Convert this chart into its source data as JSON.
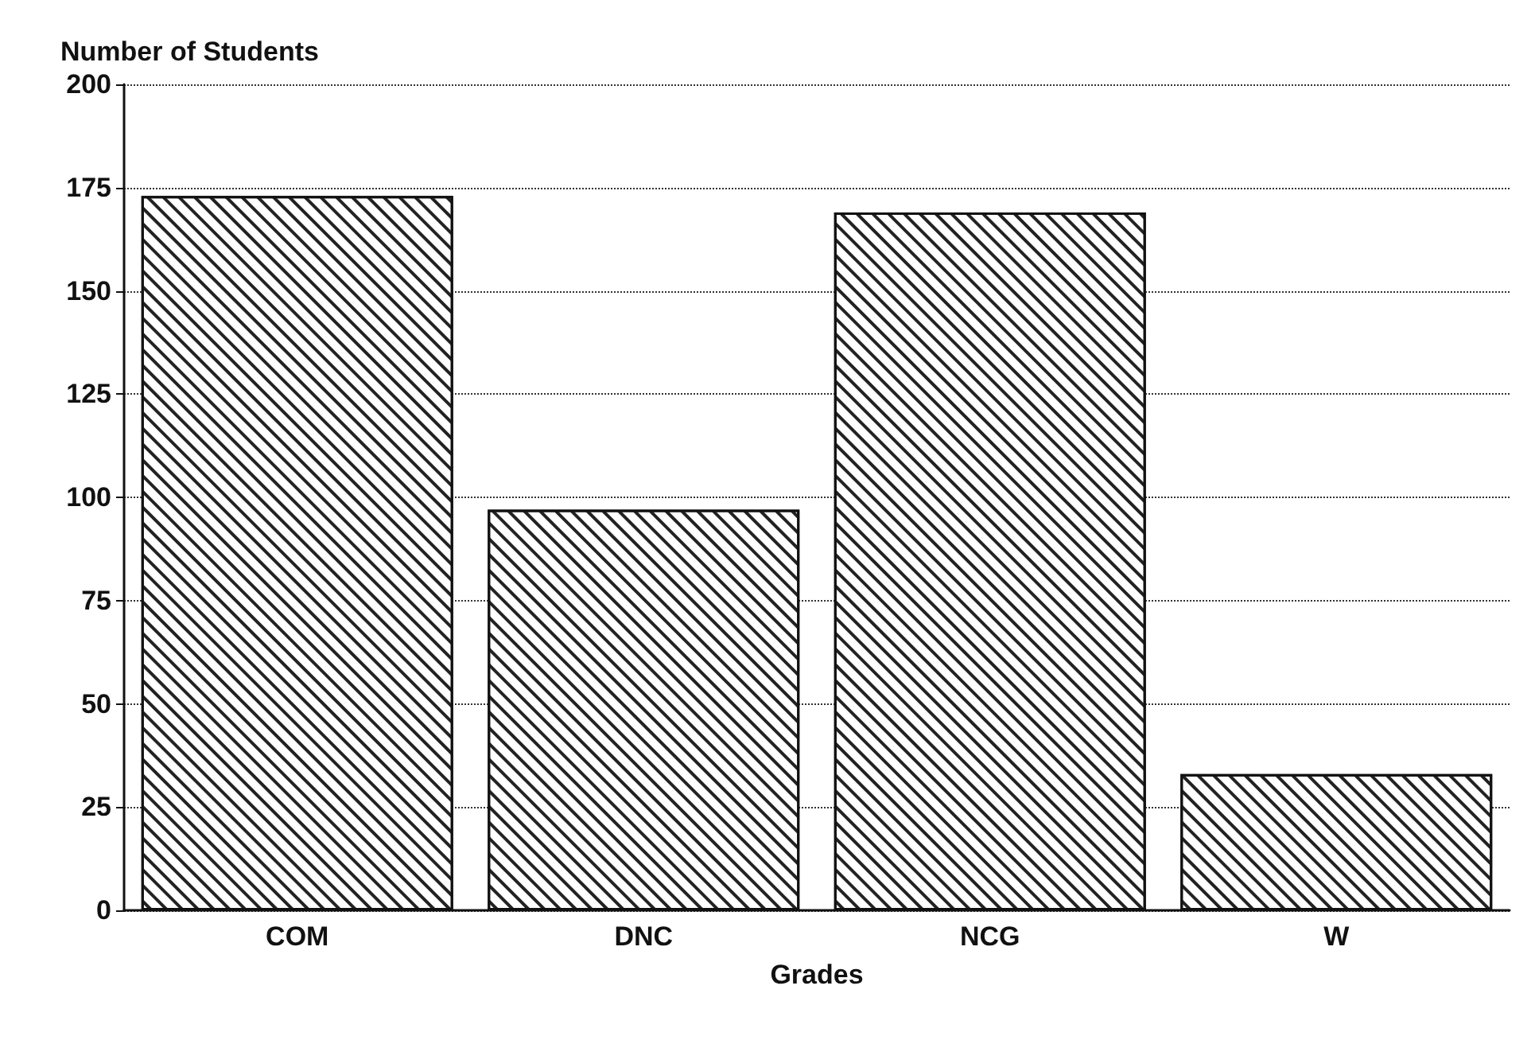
{
  "chart_data": {
    "type": "bar",
    "xlabel": "Grades",
    "ylabel": "Number of Students",
    "categories": [
      "COM",
      "DNC",
      "NCG",
      "W"
    ],
    "values": [
      173,
      97,
      169,
      33
    ],
    "color": "#ffffff",
    "ylim": [
      0,
      200
    ],
    "yticks": [
      0,
      25,
      50,
      75,
      100,
      125,
      150,
      175,
      200
    ],
    "grid": "y"
  }
}
